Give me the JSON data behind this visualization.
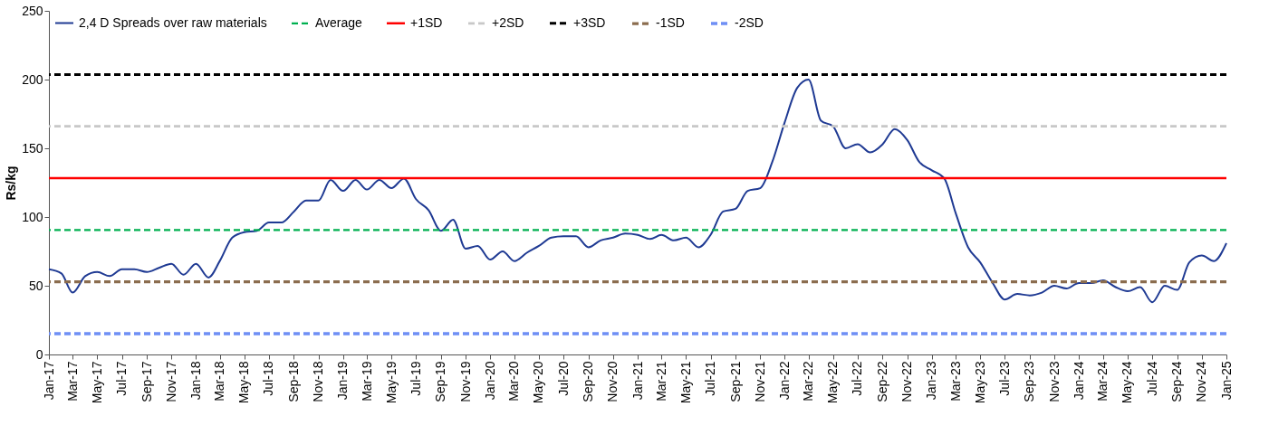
{
  "chart_data": {
    "type": "line",
    "ylabel": "Rs/kg",
    "ylim": [
      0,
      250
    ],
    "yticks": [
      0,
      50,
      100,
      150,
      200,
      250
    ],
    "xlim": [
      "2017-01",
      "2025-01"
    ],
    "xticks": [
      {
        "value": "2017-01",
        "label": "Jan-17"
      },
      {
        "value": "2017-03",
        "label": "Mar-17"
      },
      {
        "value": "2017-05",
        "label": "May-17"
      },
      {
        "value": "2017-07",
        "label": "Jul-17"
      },
      {
        "value": "2017-09",
        "label": "Sep-17"
      },
      {
        "value": "2017-11",
        "label": "Nov-17"
      },
      {
        "value": "2018-01",
        "label": "Jan-18"
      },
      {
        "value": "2018-03",
        "label": "Mar-18"
      },
      {
        "value": "2018-05",
        "label": "May-18"
      },
      {
        "value": "2018-07",
        "label": "Jul-18"
      },
      {
        "value": "2018-09",
        "label": "Sep-18"
      },
      {
        "value": "2018-11",
        "label": "Nov-18"
      },
      {
        "value": "2019-01",
        "label": "Jan-19"
      },
      {
        "value": "2019-03",
        "label": "Mar-19"
      },
      {
        "value": "2019-05",
        "label": "May-19"
      },
      {
        "value": "2019-07",
        "label": "Jul-19"
      },
      {
        "value": "2019-09",
        "label": "Sep-19"
      },
      {
        "value": "2019-11",
        "label": "Nov-19"
      },
      {
        "value": "2020-01",
        "label": "Jan-20"
      },
      {
        "value": "2020-03",
        "label": "Mar-20"
      },
      {
        "value": "2020-05",
        "label": "May-20"
      },
      {
        "value": "2020-07",
        "label": "Jul-20"
      },
      {
        "value": "2020-09",
        "label": "Sep-20"
      },
      {
        "value": "2020-11",
        "label": "Nov-20"
      },
      {
        "value": "2021-01",
        "label": "Jan-21"
      },
      {
        "value": "2021-03",
        "label": "Mar-21"
      },
      {
        "value": "2021-05",
        "label": "May-21"
      },
      {
        "value": "2021-07",
        "label": "Jul-21"
      },
      {
        "value": "2021-09",
        "label": "Sep-21"
      },
      {
        "value": "2021-11",
        "label": "Nov-21"
      },
      {
        "value": "2022-01",
        "label": "Jan-22"
      },
      {
        "value": "2022-03",
        "label": "Mar-22"
      },
      {
        "value": "2022-05",
        "label": "May-22"
      },
      {
        "value": "2022-07",
        "label": "Jul-22"
      },
      {
        "value": "2022-09",
        "label": "Sep-22"
      },
      {
        "value": "2022-11",
        "label": "Nov-22"
      },
      {
        "value": "2023-01",
        "label": "Jan-23"
      },
      {
        "value": "2023-03",
        "label": "Mar-23"
      },
      {
        "value": "2023-05",
        "label": "May-23"
      },
      {
        "value": "2023-07",
        "label": "Jul-23"
      },
      {
        "value": "2023-09",
        "label": "Sep-23"
      },
      {
        "value": "2023-11",
        "label": "Nov-23"
      },
      {
        "value": "2024-01",
        "label": "Jan-24"
      },
      {
        "value": "2024-03",
        "label": "Mar-24"
      },
      {
        "value": "2024-05",
        "label": "May-24"
      },
      {
        "value": "2024-07",
        "label": "Jul-24"
      },
      {
        "value": "2024-09",
        "label": "Sep-24"
      },
      {
        "value": "2024-11",
        "label": "Nov-24"
      },
      {
        "value": "2025-01",
        "label": "Jan-25"
      }
    ],
    "x": [
      "2017-01",
      "2017-02",
      "2017-03",
      "2017-04",
      "2017-05",
      "2017-06",
      "2017-07",
      "2017-08",
      "2017-09",
      "2017-10",
      "2017-11",
      "2017-12",
      "2018-01",
      "2018-02",
      "2018-03",
      "2018-04",
      "2018-05",
      "2018-06",
      "2018-07",
      "2018-08",
      "2018-09",
      "2018-10",
      "2018-11",
      "2018-12",
      "2019-01",
      "2019-02",
      "2019-03",
      "2019-04",
      "2019-05",
      "2019-06",
      "2019-07",
      "2019-08",
      "2019-09",
      "2019-10",
      "2019-11",
      "2019-12",
      "2020-01",
      "2020-02",
      "2020-03",
      "2020-04",
      "2020-05",
      "2020-06",
      "2020-07",
      "2020-08",
      "2020-09",
      "2020-10",
      "2020-11",
      "2020-12",
      "2021-01",
      "2021-02",
      "2021-03",
      "2021-04",
      "2021-05",
      "2021-06",
      "2021-07",
      "2021-08",
      "2021-09",
      "2021-10",
      "2021-11",
      "2021-12",
      "2022-01",
      "2022-02",
      "2022-03",
      "2022-04",
      "2022-05",
      "2022-06",
      "2022-07",
      "2022-08",
      "2022-09",
      "2022-10",
      "2022-11",
      "2022-12",
      "2023-01",
      "2023-02",
      "2023-03",
      "2023-04",
      "2023-05",
      "2023-06",
      "2023-07",
      "2023-08",
      "2023-09",
      "2023-10",
      "2023-11",
      "2023-12",
      "2024-01",
      "2024-02",
      "2024-03",
      "2024-04",
      "2024-05",
      "2024-06",
      "2024-07",
      "2024-08",
      "2024-09",
      "2024-10",
      "2024-11",
      "2024-12",
      "2025-01"
    ],
    "series": [
      {
        "name": "2,4 D Spreads over raw materials",
        "color": "#1f3a93",
        "line_style": "solid",
        "values": [
          62,
          59,
          45,
          57,
          60,
          57,
          62,
          62,
          60,
          63,
          66,
          58,
          66,
          56,
          68,
          85,
          89,
          90,
          96,
          96,
          104,
          112,
          112,
          127,
          119,
          127,
          120,
          127,
          121,
          128,
          113,
          105,
          90,
          98,
          77,
          79,
          69,
          75,
          68,
          74,
          79,
          85,
          86,
          86,
          78,
          83,
          85,
          88,
          87,
          84,
          87,
          83,
          85,
          78,
          87,
          104,
          106,
          119,
          121,
          140,
          169,
          194,
          200,
          170,
          166,
          150,
          153,
          147,
          153,
          164,
          156,
          140,
          134,
          128,
          103,
          78,
          67,
          52,
          40,
          44,
          43,
          45,
          50,
          48,
          52,
          52,
          54,
          49,
          46,
          49,
          38,
          50,
          47,
          67,
          72,
          68,
          81
        ]
      }
    ],
    "ref_lines": [
      {
        "axis": "y",
        "value": 90.6,
        "label": "Average",
        "color": "#00b050",
        "line_style": "dashed"
      },
      {
        "axis": "y",
        "value": 128.3,
        "label": "+1SD",
        "color": "#ff0000",
        "line_style": "solid"
      },
      {
        "axis": "y",
        "value": 166,
        "label": "+2SD",
        "color": "#c8c8c8",
        "line_style": "dashed"
      },
      {
        "axis": "y",
        "value": 203.7,
        "label": "+3SD",
        "color": "#000000",
        "line_style": "dashed"
      },
      {
        "axis": "y",
        "value": 52.9,
        "label": "-1SD",
        "color": "#8b6d4f",
        "line_style": "dashed"
      },
      {
        "axis": "y",
        "value": 15.2,
        "label": "-2SD",
        "color": "#6f8ff5",
        "line_style": "dashed"
      }
    ],
    "grid": false,
    "legend": "top"
  }
}
